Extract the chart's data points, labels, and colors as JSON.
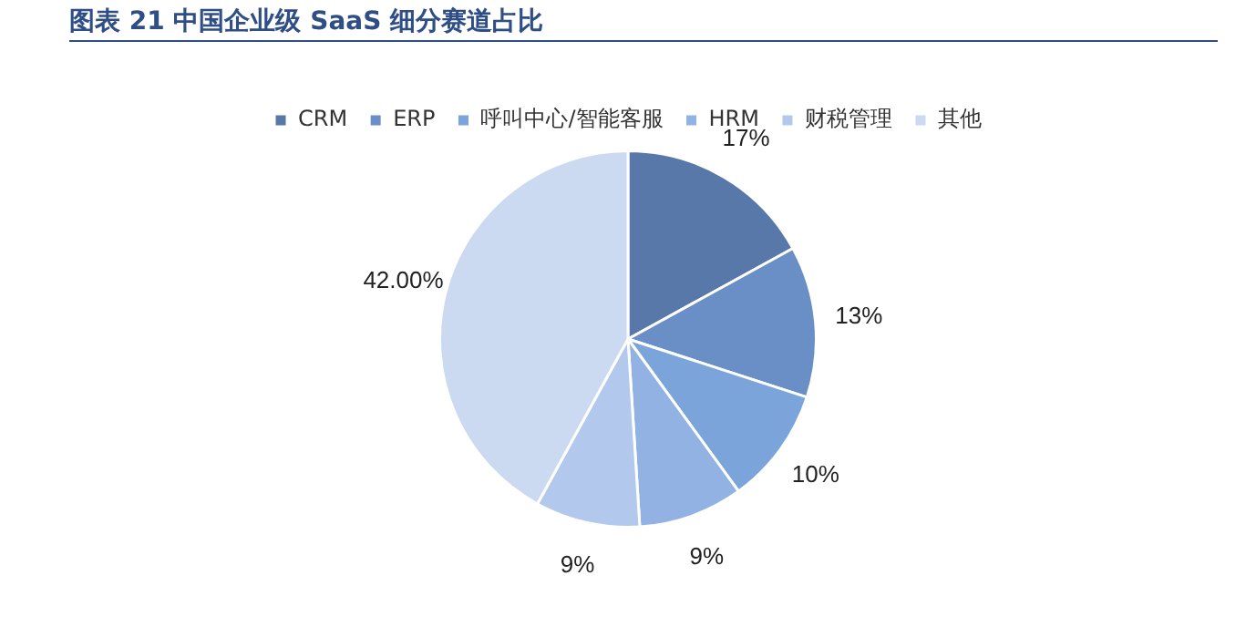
{
  "chart_data": {
    "type": "pie",
    "title": "图表 21 中国企业级 SaaS 细分赛道占比",
    "categories": [
      "CRM",
      "ERP",
      "呼叫中心/智能客服",
      "HRM",
      "财税管理",
      "其他"
    ],
    "values": [
      17,
      13,
      10,
      9,
      9,
      42.0
    ],
    "value_labels": [
      "17%",
      "13%",
      "10%",
      "9%",
      "9%",
      "42.00%"
    ],
    "colors": [
      "#5778a8",
      "#6a8fc6",
      "#7aa4da",
      "#93b2e4",
      "#b3c8ed",
      "#cbd9f1"
    ],
    "legend": "top"
  }
}
